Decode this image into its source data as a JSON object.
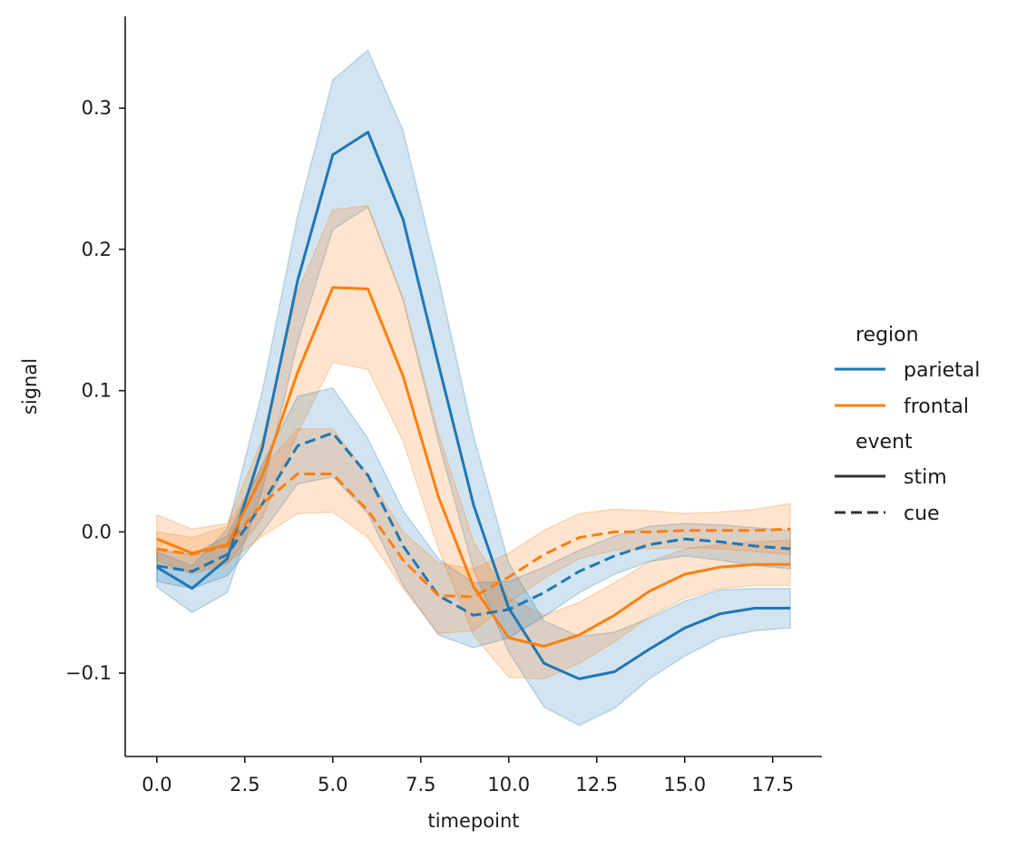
{
  "chart_data": {
    "type": "line",
    "xlabel": "timepoint",
    "ylabel": "signal",
    "xlim": [
      -0.9,
      18.9
    ],
    "ylim": [
      -0.159,
      0.365
    ],
    "x_ticks": [
      0,
      2.5,
      5,
      7.5,
      10,
      12.5,
      15,
      17.5
    ],
    "x_tick_labels": [
      "0.0",
      "2.5",
      "5.0",
      "7.5",
      "10.0",
      "12.5",
      "15.0",
      "17.5"
    ],
    "y_ticks": [
      -0.1,
      0,
      0.1,
      0.2,
      0.3
    ],
    "y_tick_labels": [
      "−0.1",
      "0.0",
      "0.1",
      "0.2",
      "0.3"
    ],
    "grid": false,
    "legend_position": "right",
    "legend": {
      "hue_title": "region",
      "hue_entries": [
        {
          "label": "parietal",
          "color": "#1f77b4"
        },
        {
          "label": "frontal",
          "color": "#ff7f0e"
        }
      ],
      "style_title": "event",
      "style_entries": [
        {
          "label": "stim",
          "dash": "solid"
        },
        {
          "label": "cue",
          "dash": "dashed"
        }
      ]
    },
    "x": [
      0,
      1,
      2,
      3,
      4,
      5,
      6,
      7,
      8,
      9,
      10,
      11,
      12,
      13,
      14,
      15,
      16,
      17,
      18
    ],
    "series": [
      {
        "name": "parietal stim",
        "region": "parietal",
        "event": "stim",
        "color": "#1f77b4",
        "dash": "solid",
        "values": [
          -0.025,
          -0.04,
          -0.019,
          0.06,
          0.178,
          0.267,
          0.283,
          0.221,
          0.119,
          0.019,
          -0.054,
          -0.093,
          -0.104,
          -0.099,
          -0.083,
          -0.068,
          -0.058,
          -0.054,
          -0.054
        ],
        "ci_low": [
          -0.039,
          -0.057,
          -0.043,
          0.03,
          0.134,
          0.214,
          0.23,
          0.164,
          0.064,
          -0.027,
          -0.085,
          -0.124,
          -0.137,
          -0.125,
          -0.104,
          -0.088,
          -0.075,
          -0.07,
          -0.068
        ],
        "ci_high": [
          -0.014,
          -0.024,
          0.002,
          0.1,
          0.224,
          0.32,
          0.341,
          0.284,
          0.18,
          0.068,
          -0.022,
          -0.063,
          -0.074,
          -0.071,
          -0.061,
          -0.049,
          -0.041,
          -0.04,
          -0.04
        ]
      },
      {
        "name": "frontal stim",
        "region": "frontal",
        "event": "stim",
        "color": "#ff7f0e",
        "dash": "solid",
        "values": [
          -0.005,
          -0.015,
          -0.009,
          0.04,
          0.113,
          0.173,
          0.172,
          0.11,
          0.025,
          -0.039,
          -0.075,
          -0.081,
          -0.073,
          -0.059,
          -0.042,
          -0.03,
          -0.025,
          -0.023,
          -0.023
        ],
        "ci_low": [
          -0.02,
          -0.03,
          -0.023,
          0.01,
          0.07,
          0.12,
          0.115,
          0.064,
          -0.012,
          -0.073,
          -0.103,
          -0.104,
          -0.093,
          -0.078,
          -0.06,
          -0.047,
          -0.04,
          -0.038,
          -0.038
        ],
        "ci_high": [
          0.012,
          0.002,
          0.006,
          0.066,
          0.17,
          0.228,
          0.231,
          0.165,
          0.07,
          -0.007,
          -0.047,
          -0.059,
          -0.05,
          -0.036,
          -0.021,
          -0.012,
          -0.009,
          -0.007,
          -0.006
        ]
      },
      {
        "name": "parietal cue",
        "region": "parietal",
        "event": "cue",
        "color": "#1f77b4",
        "dash": "dashed",
        "values": [
          -0.024,
          -0.028,
          -0.016,
          0.02,
          0.061,
          0.07,
          0.04,
          -0.01,
          -0.045,
          -0.059,
          -0.055,
          -0.043,
          -0.028,
          -0.017,
          -0.009,
          -0.005,
          -0.007,
          -0.01,
          -0.012
        ],
        "ci_low": [
          -0.035,
          -0.04,
          -0.031,
          0.0,
          0.034,
          0.039,
          0.013,
          -0.038,
          -0.073,
          -0.082,
          -0.075,
          -0.06,
          -0.043,
          -0.03,
          -0.021,
          -0.017,
          -0.02,
          -0.024,
          -0.026
        ],
        "ci_high": [
          -0.013,
          -0.016,
          -0.003,
          0.048,
          0.096,
          0.102,
          0.066,
          0.015,
          -0.019,
          -0.036,
          -0.035,
          -0.025,
          -0.013,
          -0.003,
          0.004,
          0.006,
          0.005,
          0.003,
          0.001
        ]
      },
      {
        "name": "frontal cue",
        "region": "frontal",
        "event": "cue",
        "color": "#ff7f0e",
        "dash": "dashed",
        "values": [
          -0.012,
          -0.016,
          -0.01,
          0.02,
          0.041,
          0.041,
          0.015,
          -0.02,
          -0.045,
          -0.046,
          -0.032,
          -0.016,
          -0.004,
          0.0,
          0.0,
          0.001,
          0.001,
          0.001,
          0.002
        ],
        "ci_low": [
          -0.024,
          -0.028,
          -0.022,
          -0.003,
          0.013,
          0.014,
          -0.004,
          -0.04,
          -0.072,
          -0.07,
          -0.05,
          -0.033,
          -0.019,
          -0.013,
          -0.012,
          -0.011,
          -0.012,
          -0.014,
          -0.016
        ],
        "ci_high": [
          0.0,
          -0.004,
          0.004,
          0.045,
          0.073,
          0.073,
          0.04,
          0.0,
          -0.022,
          -0.026,
          -0.015,
          0.001,
          0.013,
          0.016,
          0.015,
          0.013,
          0.014,
          0.016,
          0.02
        ]
      }
    ]
  }
}
